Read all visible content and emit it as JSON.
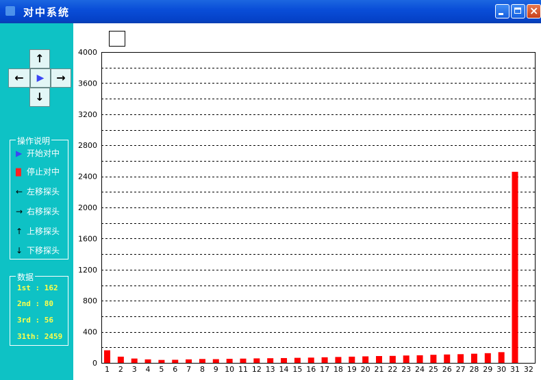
{
  "window": {
    "title": "对中系统",
    "title_color": "#0a4ed8"
  },
  "sidebar": {
    "background": "#0ec2c5",
    "dpad": {
      "up": "↑",
      "left": "←",
      "center": "▶",
      "right": "→",
      "down": "↓"
    },
    "operations": {
      "title": "操作说明",
      "items": [
        {
          "symbol": "▶",
          "label": "开始对中",
          "color": "#3b45f5"
        },
        {
          "symbol": "█",
          "label": "停止对中",
          "color": "#ff2020"
        },
        {
          "symbol": "←",
          "label": "左移探头",
          "color": "#000000"
        },
        {
          "symbol": "→",
          "label": "右移探头",
          "color": "#000000"
        },
        {
          "symbol": "↑",
          "label": "上移探头",
          "color": "#000000"
        },
        {
          "symbol": "↓",
          "label": "下移探头",
          "color": "#000000"
        }
      ]
    },
    "data": {
      "title": "数据",
      "items": [
        "1st : 162",
        "2nd : 80",
        "3rd : 56",
        "31th: 2459"
      ]
    }
  },
  "chart_data": {
    "type": "bar",
    "categories": [
      "1",
      "2",
      "3",
      "4",
      "5",
      "6",
      "7",
      "8",
      "9",
      "10",
      "11",
      "12",
      "13",
      "14",
      "15",
      "16",
      "17",
      "18",
      "19",
      "20",
      "21",
      "22",
      "23",
      "24",
      "25",
      "26",
      "27",
      "28",
      "29",
      "30",
      "31",
      "32"
    ],
    "values": [
      162,
      80,
      56,
      45,
      38,
      40,
      45,
      50,
      48,
      52,
      55,
      58,
      60,
      62,
      65,
      68,
      72,
      76,
      80,
      84,
      88,
      90,
      95,
      98,
      104,
      108,
      112,
      118,
      125,
      138,
      2459,
      0
    ],
    "ylim": [
      0,
      4000
    ],
    "yticks": [
      0,
      400,
      800,
      1200,
      1600,
      2000,
      2400,
      2800,
      3200,
      3600,
      4000
    ],
    "grid": true,
    "grid_step": 200,
    "bar_color": "#ff0000"
  }
}
